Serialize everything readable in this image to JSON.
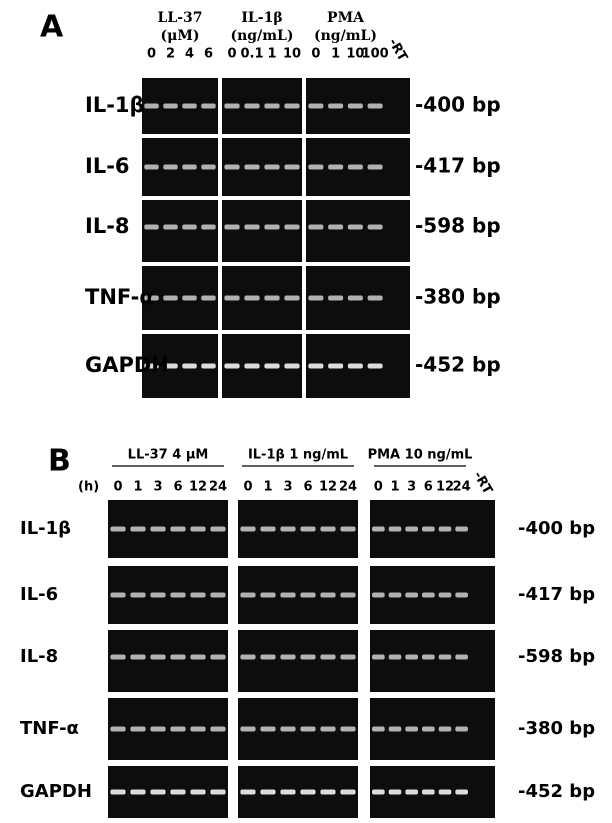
{
  "panels": [
    {
      "label": "A",
      "groups": [
        {
          "title": "LL-37",
          "unit": "(μM)",
          "lanes": [
            "0",
            "2",
            "4",
            "6"
          ]
        },
        {
          "title": "IL-1β",
          "unit": "(ng/mL)",
          "lanes": [
            "0",
            "0.1",
            "1",
            "10"
          ]
        },
        {
          "title": "PMA",
          "unit": "(ng/mL)",
          "lanes": [
            "0",
            "1",
            "10",
            "100"
          ]
        }
      ],
      "control_lane": "-RT",
      "rows": [
        {
          "gene": "IL-1β",
          "size": "-400 bp"
        },
        {
          "gene": "IL-6",
          "size": "-417 bp"
        },
        {
          "gene": "IL-8",
          "size": "-598 bp"
        },
        {
          "gene": "TNF-α",
          "size": "-380 bp"
        },
        {
          "gene": "GAPDH",
          "size": "-452 bp"
        }
      ]
    },
    {
      "label": "B",
      "time_label": "(h)",
      "groups": [
        {
          "title": "LL-37 4 μM",
          "lanes": [
            "0",
            "1",
            "3",
            "6",
            "12",
            "24"
          ]
        },
        {
          "title": "IL-1β 1 ng/mL",
          "lanes": [
            "0",
            "1",
            "3",
            "6",
            "12",
            "24"
          ]
        },
        {
          "title": "PMA 10 ng/mL",
          "lanes": [
            "0",
            "1",
            "3",
            "6",
            "12",
            "24"
          ]
        }
      ],
      "control_lane": "-RT",
      "rows": [
        {
          "gene": "IL-1β",
          "size": "-400 bp"
        },
        {
          "gene": "IL-6",
          "size": "-417 bp"
        },
        {
          "gene": "IL-8",
          "size": "-598 bp"
        },
        {
          "gene": "TNF-α",
          "size": "-380 bp"
        },
        {
          "gene": "GAPDH",
          "size": "-452 bp"
        }
      ]
    }
  ]
}
